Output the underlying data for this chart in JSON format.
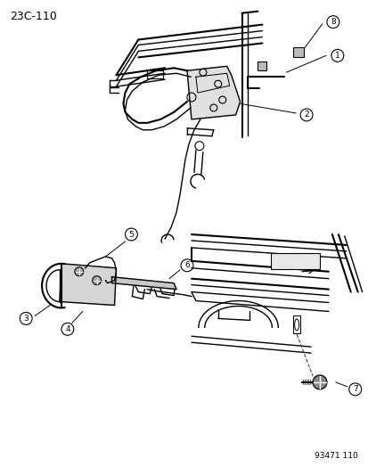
{
  "title_code": "23C-110",
  "catalog_num": "93471 110",
  "bg_color": "#ffffff",
  "line_color": "#000000",
  "figsize": [
    4.14,
    5.33
  ],
  "dpi": 100
}
